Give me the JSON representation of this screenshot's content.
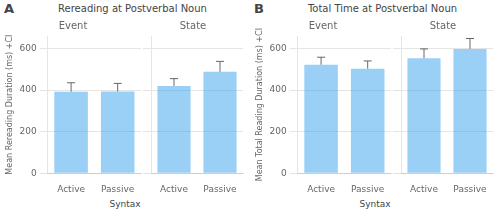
{
  "chart_data": [
    {
      "type": "bar",
      "panel_label": "A",
      "title": "Rereading at Postverbal Noun",
      "ylabel": "Mean Rereading Duration (ms) +CI",
      "xlabel": "Syntax",
      "categories": [
        "Active",
        "Passive"
      ],
      "facets": [
        {
          "title": "Event",
          "values": [
            392,
            393
          ],
          "ci_upper": [
            435,
            432
          ]
        },
        {
          "title": "State",
          "values": [
            420,
            488
          ],
          "ci_upper": [
            455,
            538
          ]
        }
      ],
      "ylim": [
        0,
        660
      ],
      "yticks": [
        0,
        200,
        400,
        600
      ],
      "grid": true
    },
    {
      "type": "bar",
      "panel_label": "B",
      "title": "Total Time at Postverbal Noun",
      "ylabel": "Mean Total Reading Duration (ms) +CI",
      "xlabel": "Syntax",
      "categories": [
        "Active",
        "Passive"
      ],
      "facets": [
        {
          "title": "Event",
          "values": [
            522,
            503
          ],
          "ci_upper": [
            558,
            540
          ]
        },
        {
          "title": "State",
          "values": [
            553,
            598
          ],
          "ci_upper": [
            598,
            648
          ]
        }
      ],
      "ylim": [
        0,
        660
      ],
      "yticks": [
        0,
        200,
        400,
        600
      ],
      "grid": true
    }
  ]
}
